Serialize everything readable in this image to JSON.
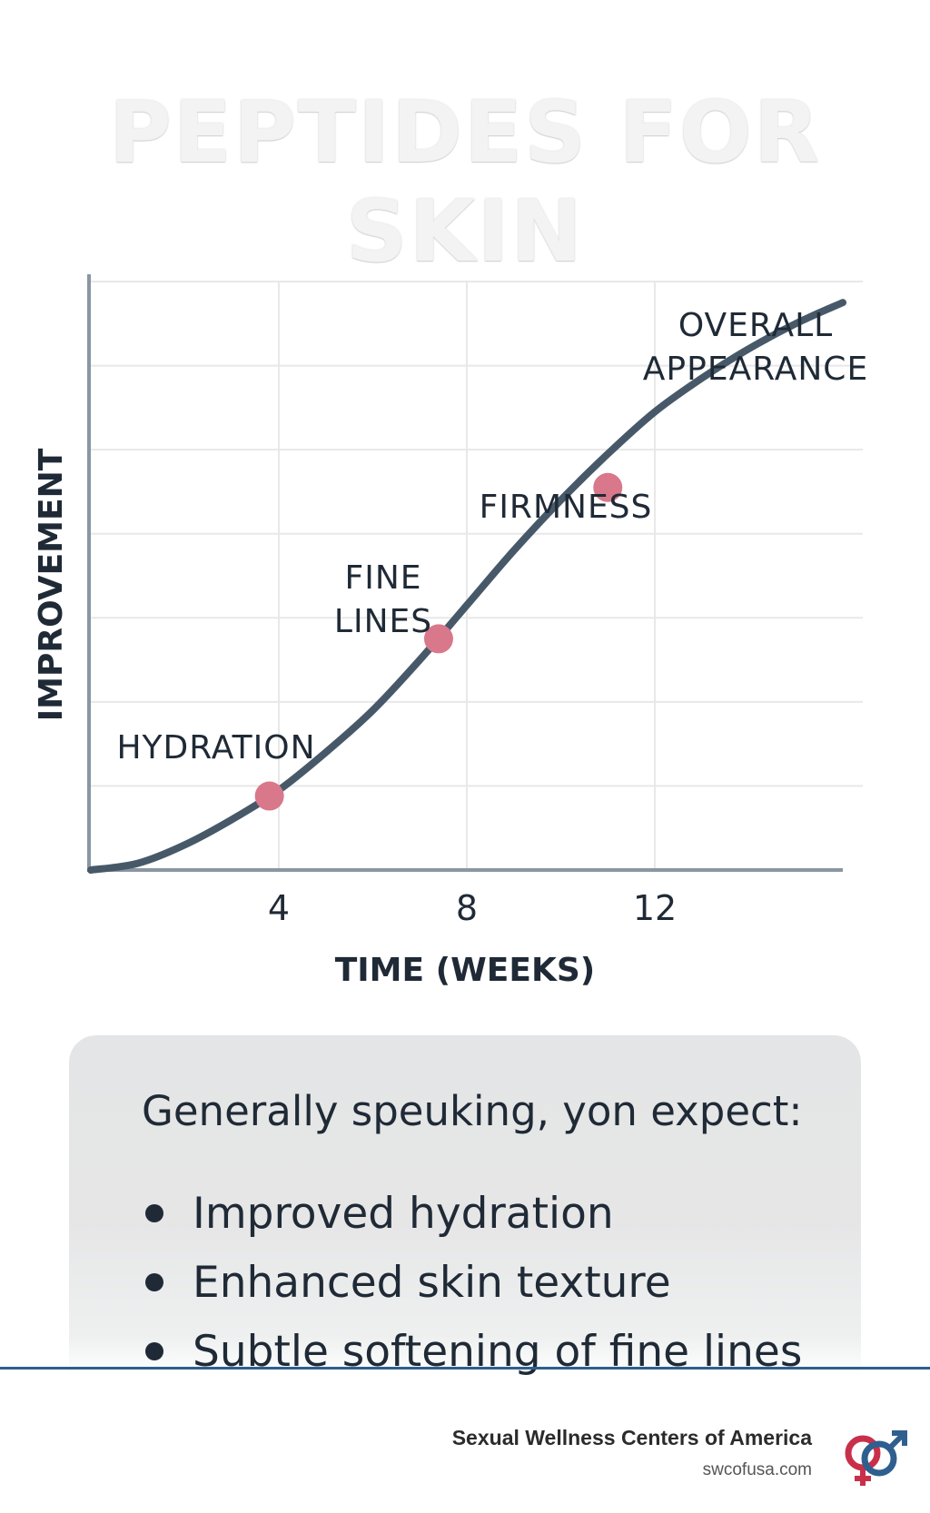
{
  "header": {
    "title": "PEPTIDES FOR SKIN"
  },
  "chart_data": {
    "type": "line",
    "xlabel": "TIME (WEEKS)",
    "ylabel": "IMPROVEMENT",
    "xlim": [
      0,
      16
    ],
    "ylim": [
      0,
      7
    ],
    "xticks": [
      4,
      8,
      12
    ],
    "grid": true,
    "series": [
      {
        "x": [
          0,
          1,
          2,
          3,
          4,
          5,
          6,
          7,
          8,
          9,
          10,
          11,
          12,
          13,
          14,
          15,
          16
        ],
        "values": [
          0,
          0.08,
          0.3,
          0.6,
          0.95,
          1.4,
          1.9,
          2.5,
          3.15,
          3.8,
          4.4,
          4.95,
          5.45,
          5.85,
          6.2,
          6.5,
          6.75
        ],
        "color": "#475969"
      }
    ],
    "markers": [
      {
        "x": 3.8,
        "y": 0.88,
        "color": "#d8788a"
      },
      {
        "x": 7.4,
        "y": 2.75,
        "color": "#d8788a"
      },
      {
        "x": 11.0,
        "y": 4.55,
        "color": "#d8788a"
      }
    ],
    "annotations": [
      {
        "lines": [
          "HYDRATION"
        ]
      },
      {
        "lines": [
          "FINE",
          "LINES"
        ]
      },
      {
        "lines": [
          "FIRMNESS"
        ]
      },
      {
        "lines": [
          "OVERALL",
          "APPEARANCE"
        ]
      }
    ]
  },
  "info": {
    "heading": "Generally speuking, yon expect:",
    "benefits": [
      "Improved hydration",
      "Enhanced skin texture",
      "Subtle softening of fine lines"
    ]
  },
  "footer": {
    "org": "Sexual Wellness Centers of America",
    "url": "swcofusa.com"
  },
  "colors": {
    "curve": "#475969",
    "marker": "#d8788a",
    "grid": "#e8e8e8",
    "axis": "#8a96a2",
    "footer_line": "#2f5f8f"
  }
}
